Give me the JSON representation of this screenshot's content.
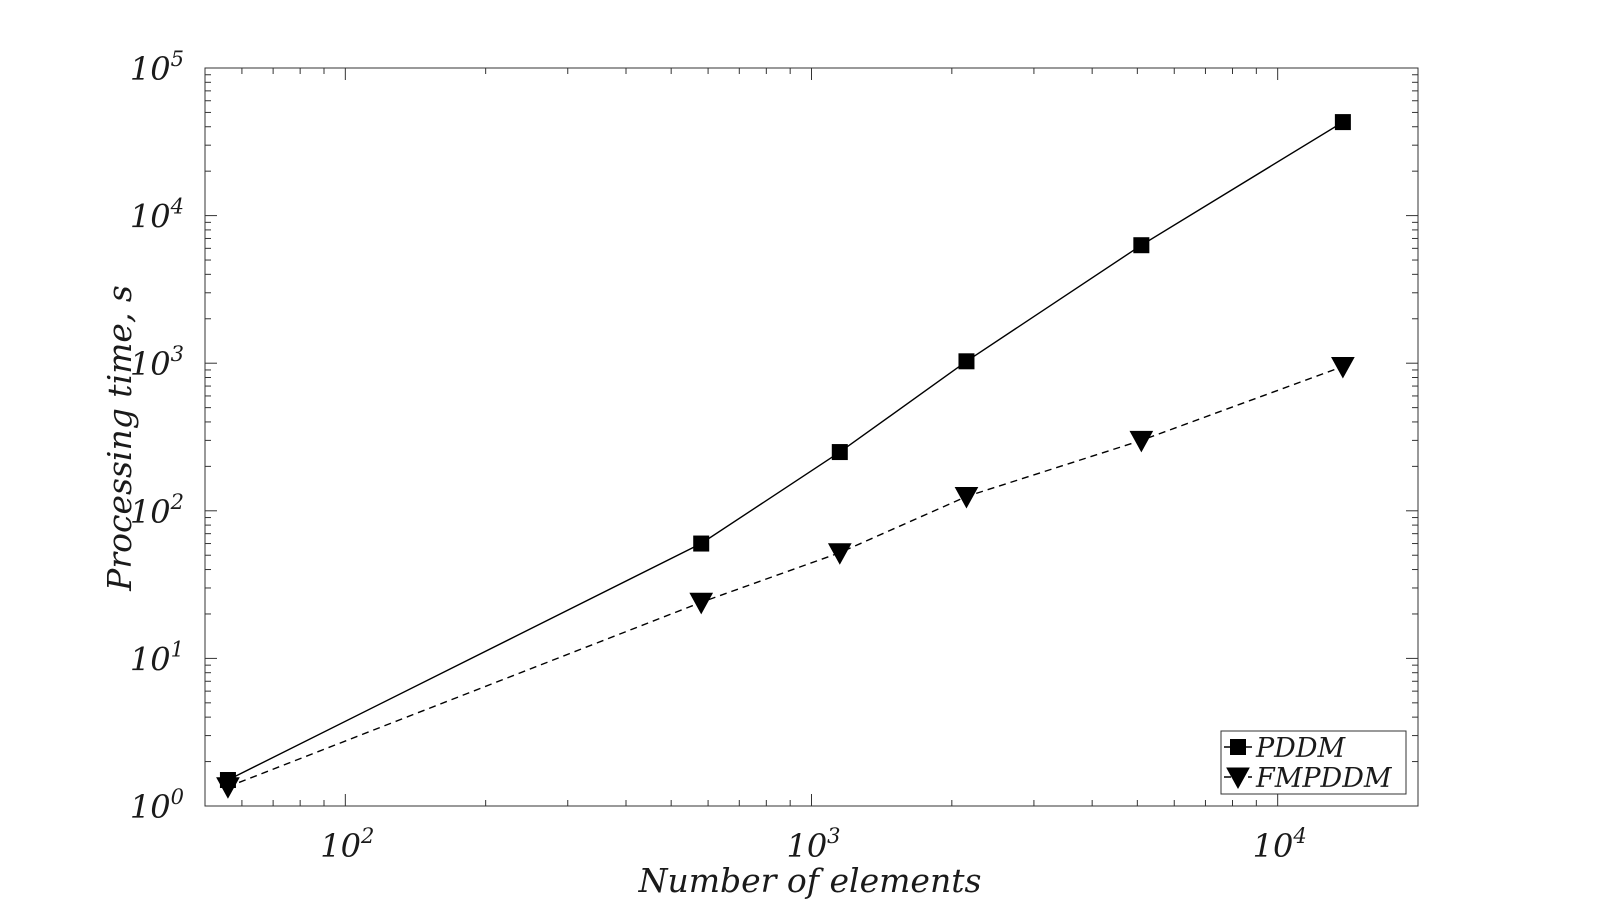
{
  "chart_data": {
    "type": "line",
    "title": "",
    "xlabel": "Number of elements",
    "ylabel": "Processing time, s",
    "xscale": "log",
    "yscale": "log",
    "xlim": [
      50,
      20000
    ],
    "ylim": [
      1,
      100000
    ],
    "grid": false,
    "legend_position": "bottom-right",
    "x_ticks": [
      {
        "base": "10",
        "exp": "2",
        "value": 100
      },
      {
        "base": "10",
        "exp": "3",
        "value": 1000
      },
      {
        "base": "10",
        "exp": "4",
        "value": 10000
      }
    ],
    "y_ticks": [
      {
        "base": "10",
        "exp": "0",
        "value": 1
      },
      {
        "base": "10",
        "exp": "1",
        "value": 10
      },
      {
        "base": "10",
        "exp": "2",
        "value": 100
      },
      {
        "base": "10",
        "exp": "3",
        "value": 1000
      },
      {
        "base": "10",
        "exp": "4",
        "value": 10000
      },
      {
        "base": "10",
        "exp": "5",
        "value": 100000
      }
    ],
    "series": [
      {
        "name": "PDDM",
        "marker": "square",
        "line": "solid",
        "color": "#000000",
        "x": [
          56,
          580,
          1150,
          2150,
          5100,
          13800
        ],
        "y": [
          1.5,
          60,
          250,
          1030,
          6300,
          43000
        ]
      },
      {
        "name": "FMPDDM",
        "marker": "triangle-down",
        "line": "dashed",
        "color": "#000000",
        "x": [
          56,
          580,
          1150,
          2150,
          5100,
          13800
        ],
        "y": [
          1.35,
          24,
          52,
          125,
          300,
          950
        ]
      }
    ]
  }
}
